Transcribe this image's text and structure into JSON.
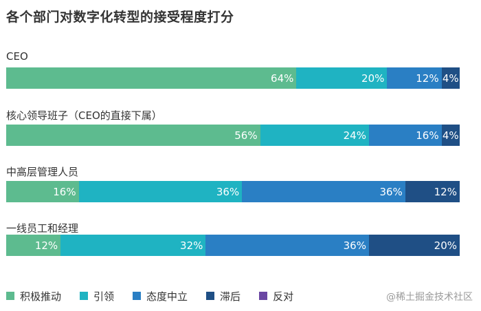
{
  "chart_data": {
    "type": "bar",
    "orientation": "horizontal",
    "stacked": true,
    "title": "各个部门对数字化转型的接受程度打分",
    "categories": [
      "CEO",
      "核心领导班子（CEO的直接下属）",
      "中高层管理人员",
      "一线员工和经理"
    ],
    "series": [
      {
        "name": "积极推动",
        "color": "#5dbb8f",
        "values": [
          64,
          56,
          16,
          12
        ]
      },
      {
        "name": "引领",
        "color": "#1fb3c2",
        "values": [
          20,
          24,
          36,
          32
        ]
      },
      {
        "name": "态度中立",
        "color": "#2a7fc4",
        "values": [
          12,
          16,
          36,
          36
        ]
      },
      {
        "name": "滞后",
        "color": "#1f4f85",
        "values": [
          4,
          4,
          12,
          20
        ]
      },
      {
        "name": "反对",
        "color": "#6a47a3",
        "values": [
          0,
          0,
          0,
          0
        ]
      }
    ],
    "value_suffix": "%",
    "xlim": [
      0,
      100
    ],
    "legend_position": "bottom-left"
  },
  "watermark": "@稀土掘金技术社区"
}
